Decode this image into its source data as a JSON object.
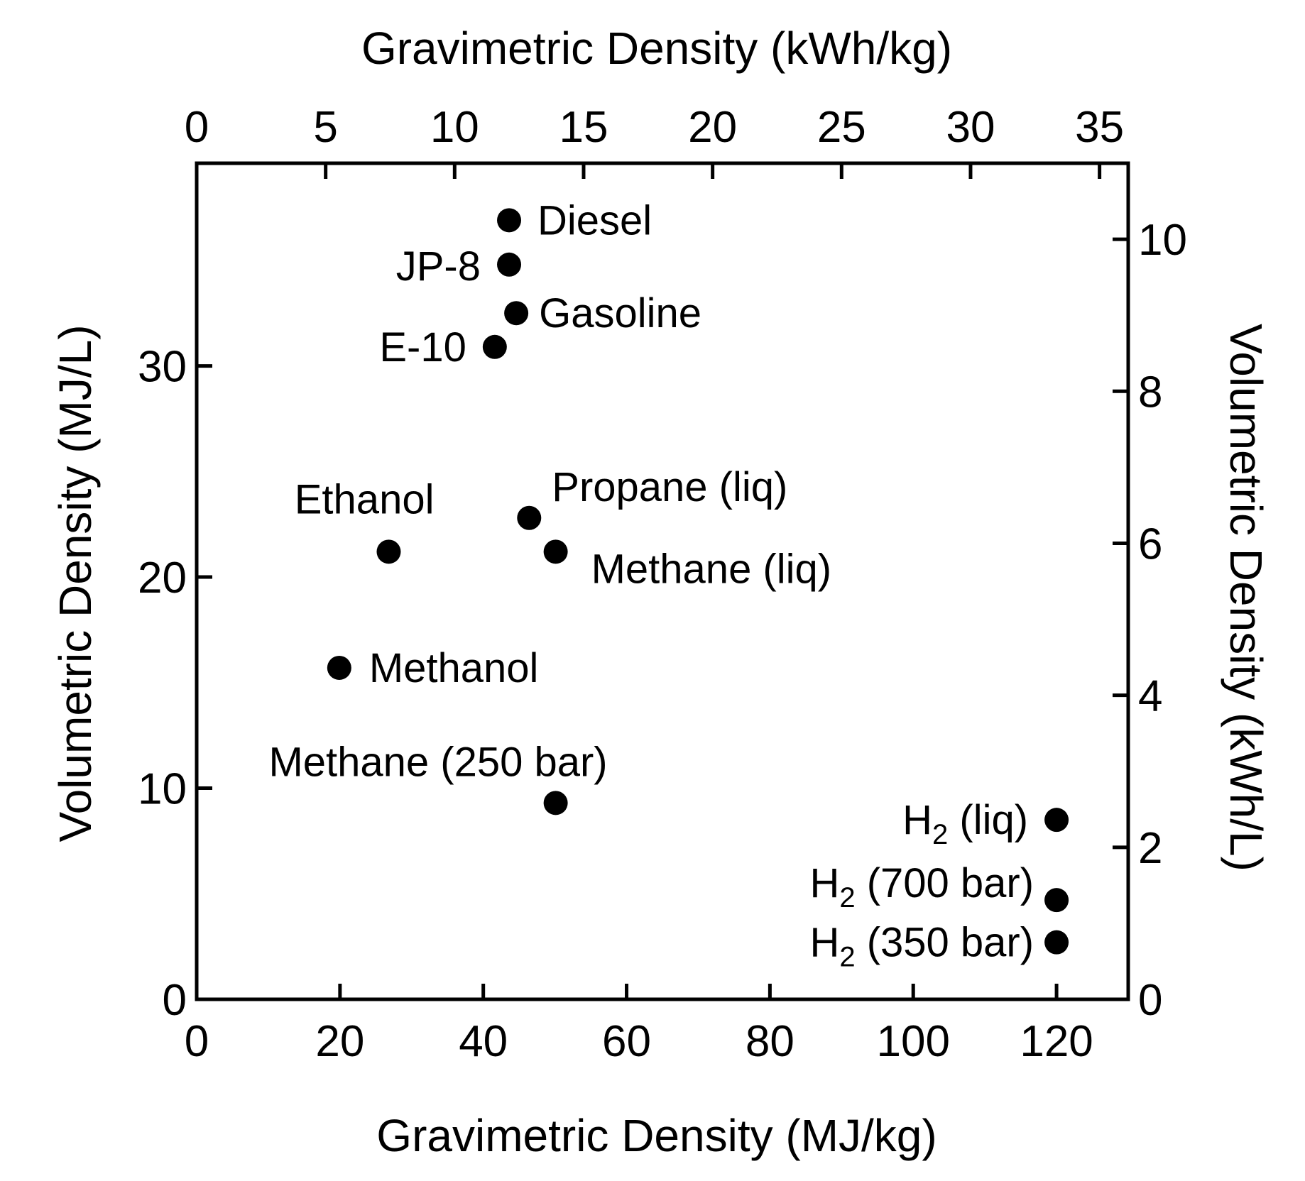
{
  "chart_data": {
    "type": "scatter",
    "title": "",
    "xlabel": "Gravimetric Density (MJ/kg)",
    "ylabel": "Volumetric Density (MJ/L)",
    "x2label": "Gravimetric Density (kWh/kg)",
    "y2label": "Volumetric Density (kWh/L)",
    "xlim": [
      0,
      130
    ],
    "ylim": [
      0,
      39.6
    ],
    "x_ticks": [
      0,
      20,
      40,
      60,
      80,
      100,
      120
    ],
    "y_ticks": [
      0,
      10,
      20,
      30
    ],
    "x2_ticks": [
      0,
      5,
      10,
      15,
      20,
      25,
      30,
      35
    ],
    "y2_ticks": [
      0,
      2,
      4,
      6,
      8,
      10
    ],
    "grid": false,
    "legend": "none",
    "points": [
      {
        "label": "Diesel",
        "x": 43.6,
        "y": 36.9
      },
      {
        "label": "JP-8",
        "x": 43.6,
        "y": 34.8
      },
      {
        "label": "Gasoline",
        "x": 44.6,
        "y": 32.5
      },
      {
        "label": "E-10",
        "x": 41.6,
        "y": 30.9
      },
      {
        "label": "Ethanol",
        "x": 26.8,
        "y": 21.2
      },
      {
        "label": "Propane (liq)",
        "x": 46.4,
        "y": 22.8
      },
      {
        "label": "Methane (liq)",
        "x": 50.1,
        "y": 21.2
      },
      {
        "label": "Methanol",
        "x": 19.9,
        "y": 15.7
      },
      {
        "label": "Methane (250 bar)",
        "x": 50.1,
        "y": 9.3
      },
      {
        "label": "H2 (liq)",
        "label_main": "H",
        "label_sub": "2",
        "label_rest": " (liq)",
        "x": 120,
        "y": 8.5
      },
      {
        "label": "H2 (700 bar)",
        "label_main": "H",
        "label_sub": "2",
        "label_rest": " (700 bar)",
        "x": 120,
        "y": 4.7
      },
      {
        "label": "H2 (350 bar)",
        "label_main": "H",
        "label_sub": "2",
        "label_rest": " (350 bar)",
        "x": 120,
        "y": 2.7
      }
    ]
  }
}
